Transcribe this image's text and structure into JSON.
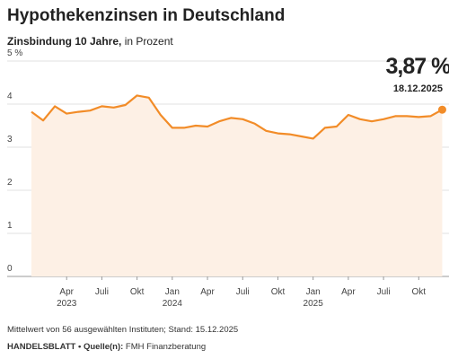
{
  "chart_data": {
    "type": "line",
    "title": "Hypothekenzinsen in Deutschland",
    "subtitle_bold": "Zinsbindung 10 Jahre,",
    "subtitle": "in Prozent",
    "x": [
      "2023-01",
      "2023-02",
      "2023-03",
      "2023-04",
      "2023-05",
      "2023-06",
      "2023-07",
      "2023-08",
      "2023-09",
      "2023-10",
      "2023-11",
      "2023-12",
      "2024-01",
      "2024-02",
      "2024-03",
      "2024-04",
      "2024-05",
      "2024-06",
      "2024-07",
      "2024-08",
      "2024-09",
      "2024-10",
      "2024-11",
      "2024-12",
      "2025-01",
      "2025-02",
      "2025-03",
      "2025-04",
      "2025-05",
      "2025-06",
      "2025-07",
      "2025-08",
      "2025-09",
      "2025-10",
      "2025-11",
      "2025-12"
    ],
    "series": [
      {
        "color": "#f28c28",
        "values": [
          3.82,
          3.62,
          3.95,
          3.78,
          3.82,
          3.85,
          3.95,
          3.92,
          3.98,
          4.2,
          4.15,
          3.75,
          3.45,
          3.45,
          3.5,
          3.48,
          3.6,
          3.68,
          3.65,
          3.55,
          3.38,
          3.32,
          3.3,
          3.25,
          3.2,
          3.45,
          3.48,
          3.75,
          3.65,
          3.6,
          3.65,
          3.72,
          3.72,
          3.7,
          3.72,
          3.87
        ],
        "value_labels": [
          null,
          null,
          null,
          null,
          null,
          null,
          null,
          null,
          null,
          null,
          null,
          null,
          null,
          null,
          null,
          null,
          null,
          null,
          null,
          null,
          null,
          null,
          null,
          null,
          null,
          null,
          null,
          null,
          null,
          null,
          null,
          null,
          null,
          null,
          null,
          "3,87 %"
        ]
      }
    ],
    "annotation": "18.12.2025",
    "area_color": "#fdf0e5",
    "ylim": [
      0,
      5
    ],
    "yticks": [
      0,
      1,
      2,
      3,
      4,
      {
        "value": 5,
        "label": "5 %"
      }
    ],
    "xticks": [
      {
        "value": "2023-04",
        "label": "Apr"
      },
      {
        "value": "2023-07",
        "label": "Juli"
      },
      {
        "value": "2023-10",
        "label": "Okt"
      },
      {
        "value": "2024-01",
        "label": "Jan"
      },
      {
        "value": "2024-04",
        "label": "Apr"
      },
      {
        "value": "2024-07",
        "label": "Juli"
      },
      {
        "value": "2024-10",
        "label": "Okt"
      },
      {
        "value": "2025-01",
        "label": "Jan"
      },
      {
        "value": "2025-04",
        "label": "Apr"
      },
      {
        "value": "2025-07",
        "label": "Juli"
      },
      {
        "value": "2025-10",
        "label": "Okt"
      }
    ],
    "x_year_labels": [
      {
        "value": "2023-04",
        "label": "2023"
      },
      {
        "value": "2024-01",
        "label": "2024"
      },
      {
        "value": "2025-01",
        "label": "2025"
      }
    ],
    "grid": true,
    "footnote": "Mittelwert von 56 ausgewählten Instituten; Stand: 15.12.2025",
    "source_bold": "HANDELSBLATT • Quelle(n):",
    "source": "FMH Finanzberatung"
  }
}
